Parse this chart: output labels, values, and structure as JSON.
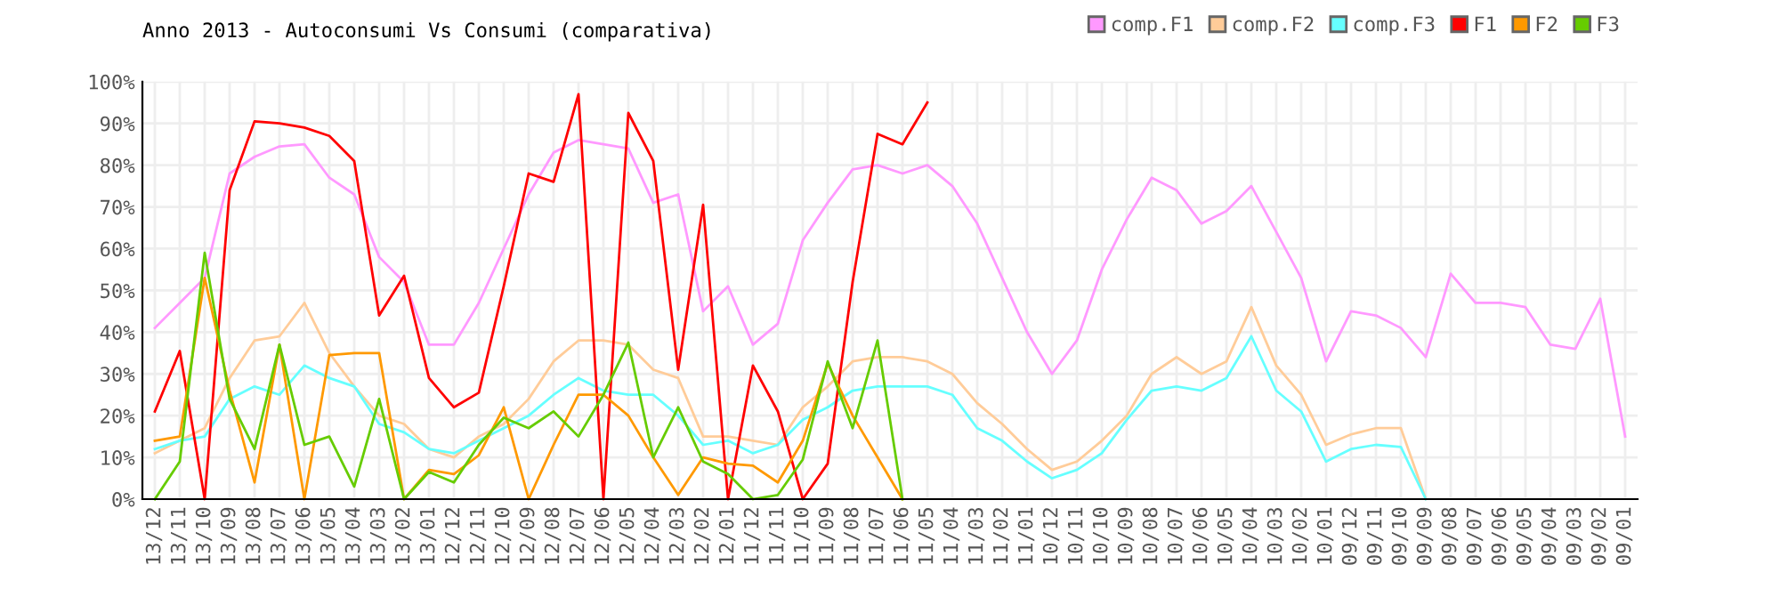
{
  "chart_data": {
    "type": "line",
    "title": "Anno 2013 - Autoconsumi Vs Consumi (comparativa)",
    "categories": [
      "13/12",
      "13/11",
      "13/10",
      "13/09",
      "13/08",
      "13/07",
      "13/06",
      "13/05",
      "13/04",
      "13/03",
      "13/02",
      "13/01",
      "12/12",
      "12/11",
      "12/10",
      "12/09",
      "12/08",
      "12/07",
      "12/06",
      "12/05",
      "12/04",
      "12/03",
      "12/02",
      "12/01",
      "11/12",
      "11/11",
      "11/10",
      "11/09",
      "11/08",
      "11/07",
      "11/06",
      "11/05",
      "11/04",
      "11/03",
      "11/02",
      "11/01",
      "10/12",
      "10/11",
      "10/10",
      "10/09",
      "10/08",
      "10/07",
      "10/06",
      "10/05",
      "10/04",
      "10/03",
      "10/02",
      "10/01",
      "09/12",
      "09/11",
      "09/10",
      "09/09",
      "09/08",
      "09/07",
      "09/06",
      "09/05",
      "09/04",
      "09/03",
      "09/02",
      "09/01"
    ],
    "series": [
      {
        "name": "comp.F1",
        "color": "#ff99ff",
        "values": [
          41,
          47,
          53,
          78,
          82,
          84.5,
          85,
          77,
          73,
          58,
          52,
          37,
          37,
          47,
          60,
          73,
          83,
          86,
          85,
          84,
          71,
          73,
          45,
          51,
          37,
          42,
          62,
          71,
          79,
          80,
          78,
          80,
          75,
          66,
          53,
          40,
          30,
          38,
          55,
          67,
          77,
          74,
          66,
          69,
          75,
          64,
          53,
          33,
          45,
          44,
          41,
          34,
          54,
          47,
          47,
          46,
          37,
          36,
          48,
          15
        ]
      },
      {
        "name": "comp.F2",
        "color": "#ffcc99",
        "values": [
          11,
          14,
          17,
          29,
          38,
          39,
          47,
          35,
          27,
          20,
          18,
          12,
          10,
          15,
          18,
          24,
          33,
          38,
          38,
          37,
          31,
          29,
          15,
          15,
          14,
          13,
          22,
          27,
          33,
          34,
          34,
          33,
          30,
          23,
          18,
          12,
          7,
          9,
          14,
          20,
          30,
          34,
          30,
          33,
          46,
          32,
          25,
          13,
          15.5,
          17,
          17,
          0,
          null,
          null,
          null,
          null,
          null,
          null,
          null,
          null
        ]
      },
      {
        "name": "comp.F3",
        "color": "#66ffff",
        "values": [
          12,
          14,
          15,
          24,
          27,
          25,
          32,
          29,
          27,
          18,
          16,
          12,
          11,
          14,
          17,
          20,
          25,
          29,
          26,
          25,
          25,
          20,
          13,
          14,
          11,
          13,
          19,
          22,
          26,
          27,
          27,
          27,
          25,
          17,
          14,
          9,
          5,
          7,
          11,
          19,
          26,
          27,
          26,
          29,
          39,
          26,
          21,
          9,
          12,
          13,
          12.5,
          0,
          null,
          null,
          null,
          null,
          null,
          null,
          null,
          null
        ]
      },
      {
        "name": "F1",
        "color": "#ff0000",
        "values": [
          21,
          35.5,
          0,
          74,
          90.5,
          90,
          89,
          87,
          81,
          44,
          53.5,
          29,
          22,
          25.5,
          51,
          78,
          76,
          97,
          0,
          92.5,
          81,
          31,
          70.5,
          0,
          32,
          21,
          0,
          8.5,
          52,
          87.5,
          85,
          95,
          null,
          null,
          null,
          null,
          null,
          null,
          null,
          null,
          null,
          null,
          null,
          null,
          null,
          null,
          null,
          null,
          null,
          null,
          null,
          null,
          null,
          null,
          null,
          null,
          null,
          null,
          null,
          null
        ]
      },
      {
        "name": "F2",
        "color": "#ff9900",
        "values": [
          14,
          15,
          53,
          26,
          4,
          37,
          0,
          34.5,
          35,
          35,
          0,
          7,
          6,
          10.5,
          22,
          0,
          13,
          25,
          25,
          20,
          10,
          1,
          10,
          8.5,
          8,
          4,
          14,
          32.5,
          20,
          10,
          0,
          null,
          null,
          null,
          null,
          null,
          null,
          null,
          null,
          null,
          null,
          null,
          null,
          null,
          null,
          null,
          null,
          null,
          null,
          null,
          null,
          null,
          null,
          null,
          null,
          null,
          null,
          null,
          null,
          null
        ]
      },
      {
        "name": "F3",
        "color": "#66cc00",
        "values": [
          0,
          9,
          59,
          24,
          12,
          37,
          13,
          15,
          3,
          24,
          0,
          6.5,
          4,
          13,
          19.5,
          17,
          21,
          15,
          25,
          37.5,
          10,
          22,
          9,
          6,
          0,
          1,
          9.5,
          33,
          17,
          38,
          0,
          null,
          null,
          null,
          null,
          null,
          null,
          null,
          null,
          null,
          null,
          null,
          null,
          null,
          null,
          null,
          null,
          null,
          null,
          null,
          null,
          null,
          null,
          null,
          null,
          null,
          null,
          null,
          null,
          null
        ]
      }
    ],
    "ylim": [
      0,
      100
    ],
    "yticks": [
      {
        "value": 0,
        "label": "0%"
      },
      {
        "value": 10,
        "label": "10%"
      },
      {
        "value": 20,
        "label": "20%"
      },
      {
        "value": 30,
        "label": "30%"
      },
      {
        "value": 40,
        "label": "40%"
      },
      {
        "value": 50,
        "label": "50%"
      },
      {
        "value": 60,
        "label": "60%"
      },
      {
        "value": 70,
        "label": "70%"
      },
      {
        "value": 80,
        "label": "80%"
      },
      {
        "value": 90,
        "label": "90%"
      },
      {
        "value": 100,
        "label": "100%"
      }
    ],
    "grid": true,
    "legend": "top right",
    "marker": "none",
    "line_style": "solid"
  }
}
